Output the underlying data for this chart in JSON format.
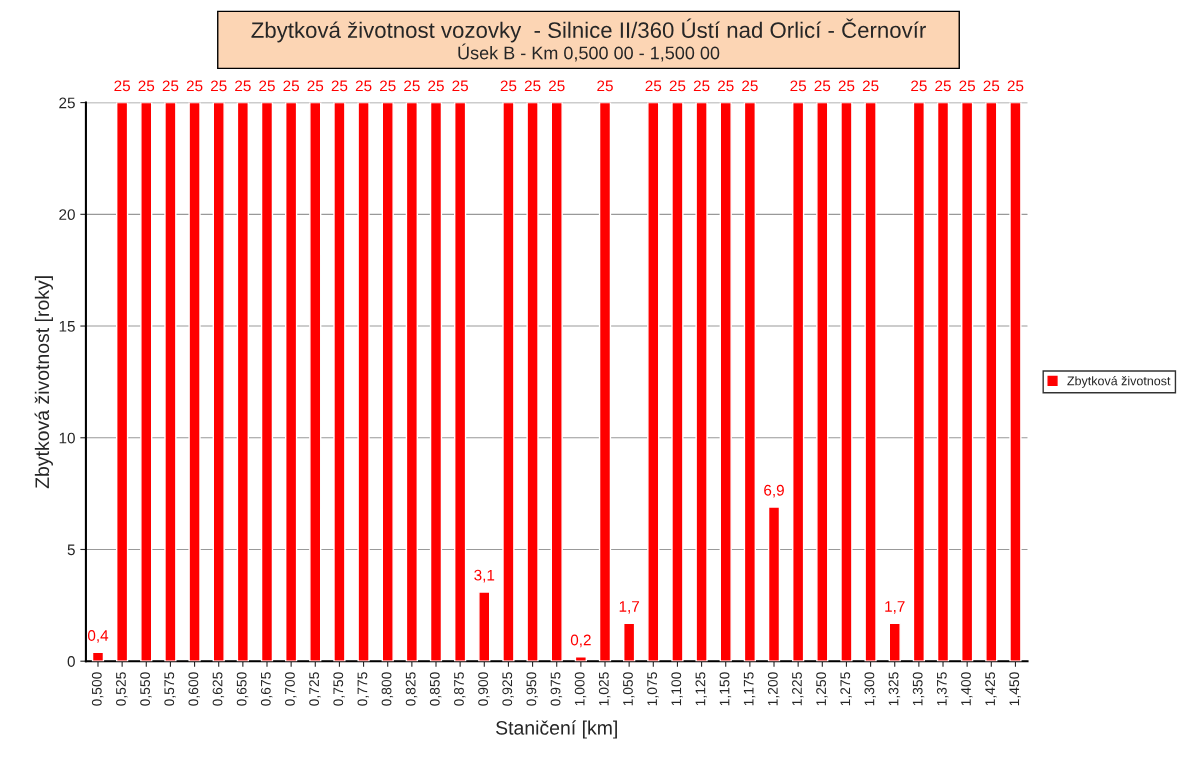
{
  "chart_data": {
    "type": "bar",
    "title": "Zbytková životnost vozovky  - Silnice II/360 Ústí nad Orlicí - Černovír",
    "subtitle": "Úsek B - Km 0,500 00 - 1,500 00",
    "xlabel": "Staničení [km]",
    "ylabel": "Zbytková životnost [roky]",
    "categories": [
      "0,500",
      "0,525",
      "0,550",
      "0,575",
      "0,600",
      "0,625",
      "0,650",
      "0,675",
      "0,700",
      "0,725",
      "0,750",
      "0,775",
      "0,800",
      "0,825",
      "0,850",
      "0,875",
      "0,900",
      "0,925",
      "0,950",
      "0,975",
      "1,000",
      "1,025",
      "1,050",
      "1,075",
      "1,100",
      "1,125",
      "1,150",
      "1,175",
      "1,200",
      "1,225",
      "1,250",
      "1,275",
      "1,300",
      "1,325",
      "1,350",
      "1,375",
      "1,400",
      "1,425",
      "1,450"
    ],
    "series": [
      {
        "name": "Zbytková životnost",
        "color": "#ff0000",
        "values": [
          0.4,
          25,
          25,
          25,
          25,
          25,
          25,
          25,
          25,
          25,
          25,
          25,
          25,
          25,
          25,
          25,
          3.1,
          25,
          25,
          25,
          0.2,
          25,
          1.7,
          25,
          25,
          25,
          25,
          25,
          6.9,
          25,
          25,
          25,
          25,
          1.7,
          25,
          25,
          25,
          25,
          25
        ],
        "value_labels": [
          "0,4",
          "25",
          "25",
          "25",
          "25",
          "25",
          "25",
          "25",
          "25",
          "25",
          "25",
          "25",
          "25",
          "25",
          "25",
          "25",
          "3,1",
          "25",
          "25",
          "25",
          "0,2",
          "25",
          "1,7",
          "25",
          "25",
          "25",
          "25",
          "25",
          "6,9",
          "25",
          "25",
          "25",
          "25",
          "1,7",
          "25",
          "25",
          "25",
          "25",
          "25"
        ]
      }
    ],
    "ylim": [
      0,
      25
    ],
    "yticks": [
      0,
      5,
      10,
      15,
      20,
      25
    ],
    "grid": "y",
    "legend": "right"
  }
}
